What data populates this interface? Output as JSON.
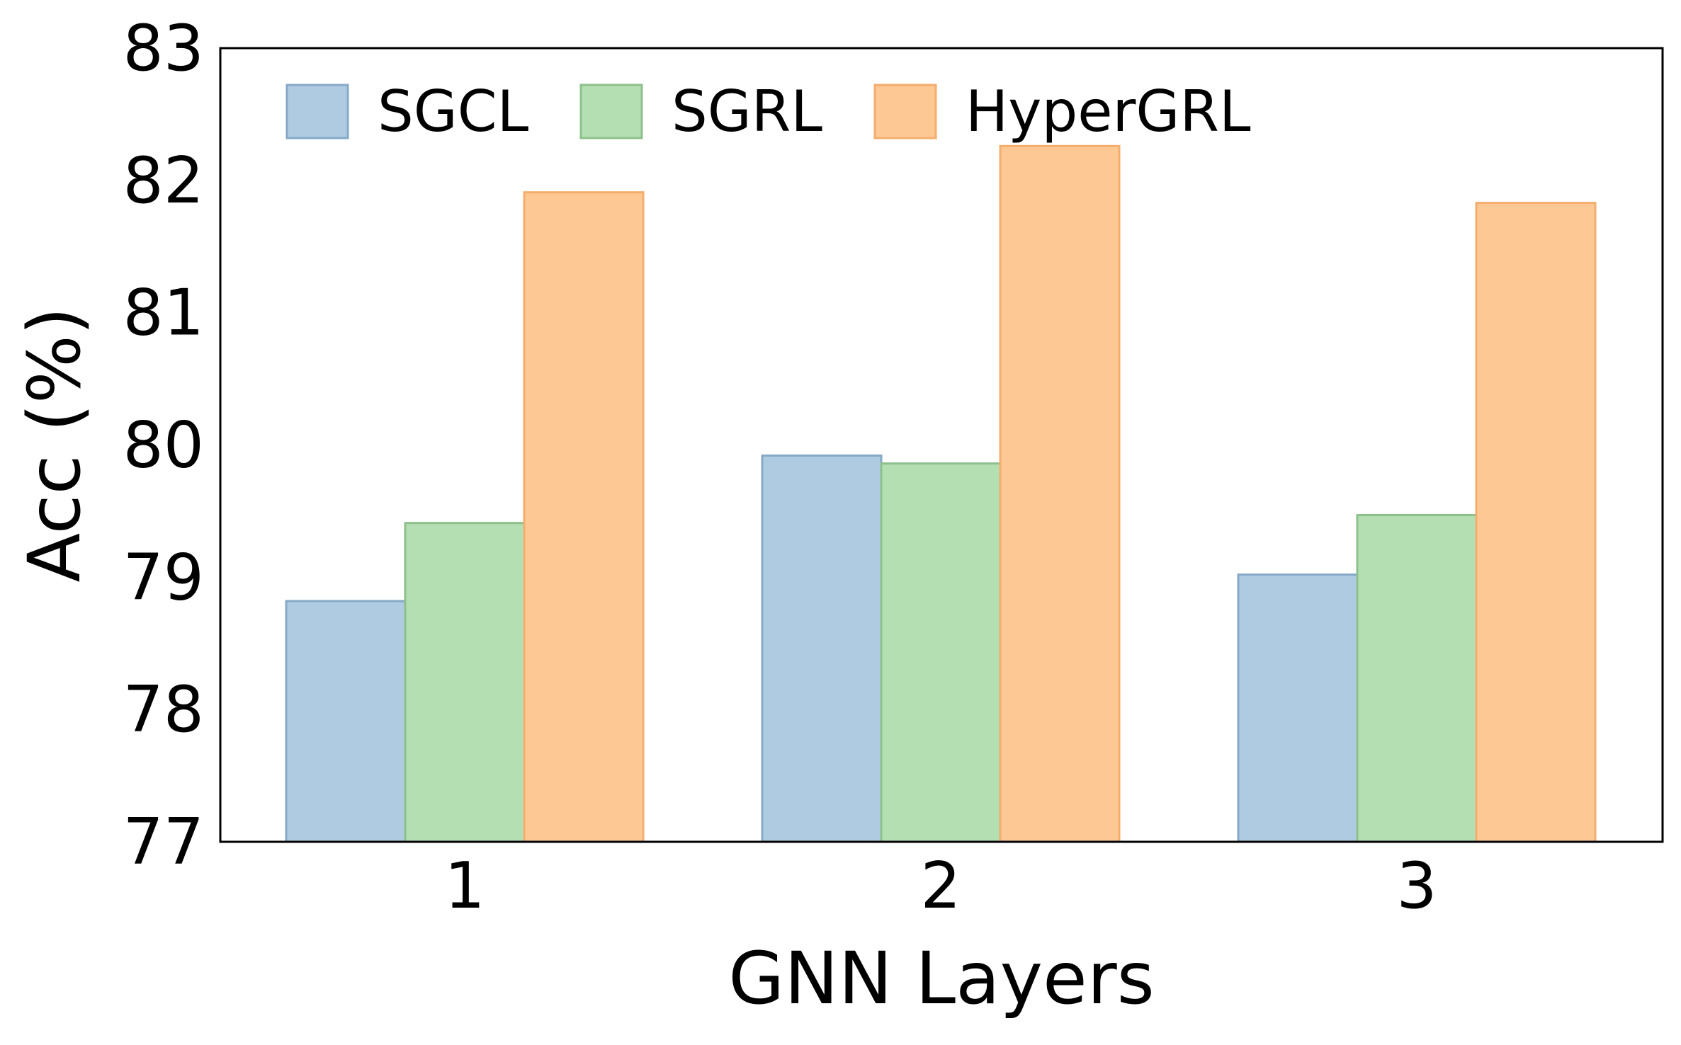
{
  "chart_data": {
    "type": "bar",
    "title": "",
    "xlabel": "GNN Layers",
    "ylabel": "Acc (%)",
    "categories": [
      "1",
      "2",
      "3"
    ],
    "ylim": [
      77,
      83
    ],
    "yticks": [
      "77",
      "78",
      "79",
      "80",
      "81",
      "82",
      "83"
    ],
    "grid": false,
    "legend_position": "top-left",
    "series": [
      {
        "name": "SGCL",
        "values": [
          78.82,
          79.92,
          79.02
        ],
        "fill": "#aecbe1",
        "stroke": "#86a9c7"
      },
      {
        "name": "SGRL",
        "values": [
          79.41,
          79.86,
          79.47
        ],
        "fill": "#b4dfb3",
        "stroke": "#8dc08c"
      },
      {
        "name": "HyperGRL",
        "values": [
          81.91,
          82.26,
          81.83
        ],
        "fill": "#fec895",
        "stroke": "#f3ae6e"
      }
    ]
  }
}
